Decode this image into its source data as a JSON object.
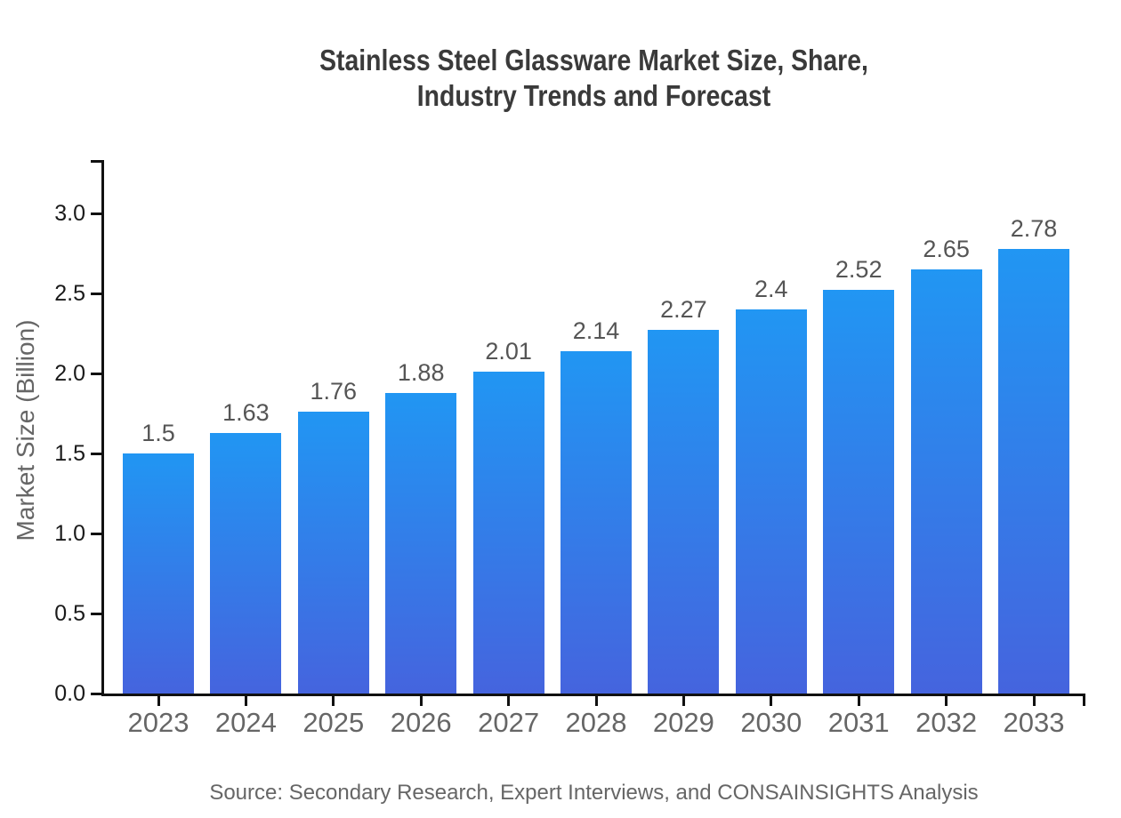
{
  "page": {
    "title_lines": [
      "Stainless Steel Glassware Market Size, Share,",
      "Industry Trends and Forecast"
    ]
  },
  "chart_data": {
    "type": "bar",
    "title": "Stainless Steel Glassware Market Size, Share, Industry Trends and Forecast",
    "categories": [
      "2023",
      "2024",
      "2025",
      "2026",
      "2027",
      "2028",
      "2029",
      "2030",
      "2031",
      "2032",
      "2033"
    ],
    "values": [
      1.5,
      1.63,
      1.76,
      1.88,
      2.01,
      2.14,
      2.27,
      2.4,
      2.52,
      2.65,
      2.78
    ],
    "value_labels": [
      "1.5",
      "1.63",
      "1.76",
      "1.88",
      "2.01",
      "2.14",
      "2.27",
      "2.4",
      "2.52",
      "2.65",
      "2.78"
    ],
    "xlabel": "",
    "ylabel": "Market Size (Billion)",
    "yticks": [
      "0.0",
      "0.5",
      "1.0",
      "1.5",
      "2.0",
      "2.5",
      "3.0"
    ],
    "ylim": [
      0,
      3.33
    ],
    "grid": false,
    "legend": false,
    "source": "Source: Secondary Research, Expert Interviews, and CONSAINSIGHTS Analysis",
    "colors": {
      "bar_gradient_top": "#2196F3",
      "bar_gradient_bottom": "#4564DE",
      "axis": "#111111",
      "title_text": "#3A3A3A",
      "ytick_text": "#1A1A1A",
      "xtick_text": "#666666",
      "value_label_text": "#555555",
      "ylabel_text": "#666666",
      "source_text": "#666666",
      "background": "#FFFFFF"
    }
  }
}
